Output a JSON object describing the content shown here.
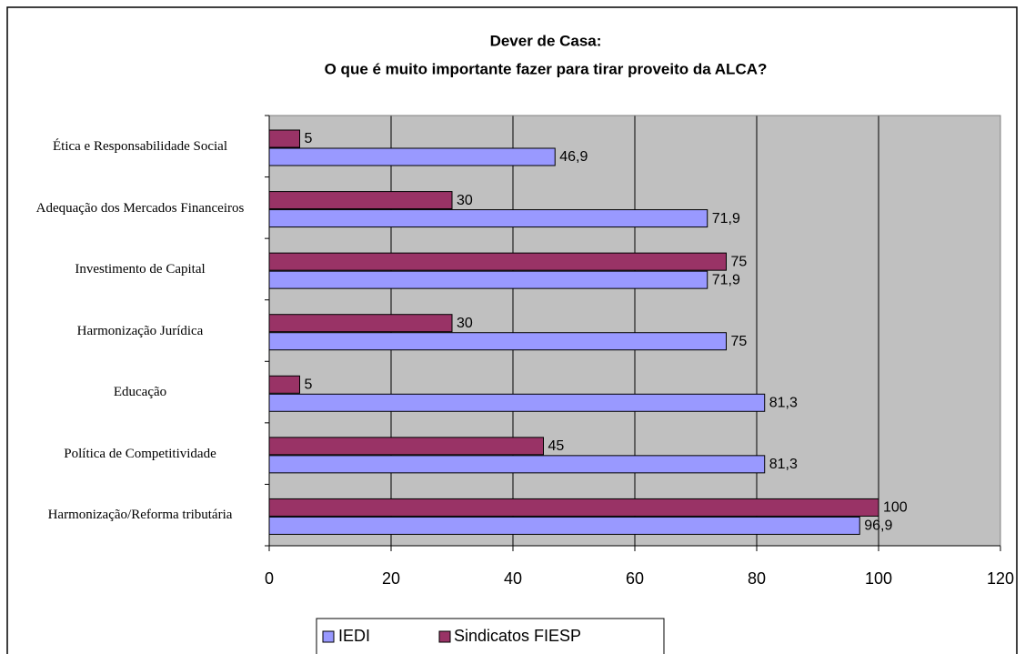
{
  "chart_data": {
    "type": "bar",
    "orientation": "horizontal",
    "title": [
      "Dever de Casa:",
      "O que é muito importante fazer para tirar proveito da ALCA?"
    ],
    "categories": [
      "Ética e Responsabilidade Social",
      "Adequação dos Mercados Financeiros",
      "Investimento de Capital",
      "Harmonização Jurídica",
      "Educação",
      "Política de Competitividade",
      "Harmonização/Reforma tributária"
    ],
    "series": [
      {
        "name": "IEDI",
        "color": "#9999ff",
        "values": [
          46.9,
          71.9,
          71.9,
          75,
          81.3,
          81.3,
          96.9
        ],
        "value_labels": [
          "46,9",
          "71,9",
          "71,9",
          "75",
          "81,3",
          "81,3",
          "96,9"
        ]
      },
      {
        "name": "Sindicatos FIESP",
        "color": "#993366",
        "values": [
          5,
          30,
          75,
          30,
          5,
          45,
          100
        ],
        "value_labels": [
          "5",
          "30",
          "75",
          "30",
          "5",
          "45",
          "100"
        ]
      }
    ],
    "xlim": [
      0,
      120
    ],
    "xticks": [
      0,
      20,
      40,
      60,
      80,
      100,
      120
    ],
    "grid": true,
    "legend": "bottom"
  }
}
